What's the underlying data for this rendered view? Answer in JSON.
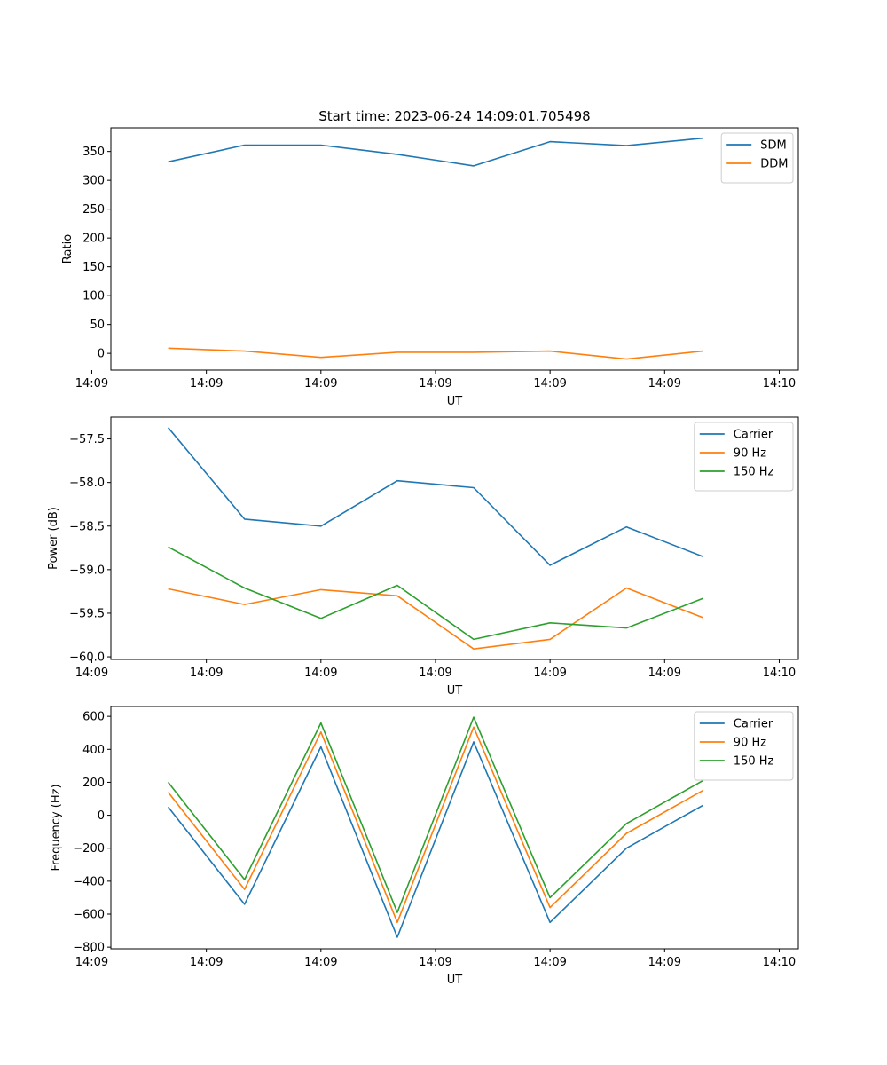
{
  "figure_title": "Start time: 2023-06-24 14:09:01.705498",
  "colors": {
    "blue": "#1f77b4",
    "orange": "#ff7f0e",
    "green": "#2ca02c"
  },
  "chart_data": [
    {
      "type": "line",
      "title": "Start time: 2023-06-24 14:09:01.705498",
      "xlabel": "UT",
      "ylabel": "Ratio",
      "x": [
        1,
        2,
        3,
        4,
        5,
        6,
        7,
        8
      ],
      "xlim": [
        0.25,
        9.25
      ],
      "x_ticks": [
        {
          "x": 0,
          "label": "14:09"
        },
        {
          "x": 1.5,
          "label": "14:09"
        },
        {
          "x": 3,
          "label": "14:09"
        },
        {
          "x": 4.5,
          "label": "14:09"
        },
        {
          "x": 6,
          "label": "14:09"
        },
        {
          "x": 7.5,
          "label": "14:09"
        },
        {
          "x": 9,
          "label": "14:10"
        }
      ],
      "ylim": [
        -29,
        391
      ],
      "y_ticks": [
        0,
        50,
        100,
        150,
        200,
        250,
        300,
        350
      ],
      "grid": false,
      "legend_position": "top-right",
      "series": [
        {
          "name": "SDM",
          "color": "#1f77b4",
          "values": [
            332,
            361,
            361,
            345,
            325,
            367,
            360,
            373
          ]
        },
        {
          "name": "DDM",
          "color": "#ff7f0e",
          "values": [
            9,
            4,
            -7,
            2,
            2,
            4,
            -10,
            4
          ]
        }
      ]
    },
    {
      "type": "line",
      "xlabel": "UT",
      "ylabel": "Power (dB)",
      "x": [
        1,
        2,
        3,
        4,
        5,
        6,
        7,
        8
      ],
      "xlim": [
        0.25,
        9.25
      ],
      "x_ticks": [
        {
          "x": 0,
          "label": "14:09"
        },
        {
          "x": 1.5,
          "label": "14:09"
        },
        {
          "x": 3,
          "label": "14:09"
        },
        {
          "x": 4.5,
          "label": "14:09"
        },
        {
          "x": 6,
          "label": "14:09"
        },
        {
          "x": 7.5,
          "label": "14:09"
        },
        {
          "x": 9,
          "label": "14:10"
        }
      ],
      "ylim": [
        -60.03,
        -57.25
      ],
      "y_ticks": [
        -60.0,
        -59.5,
        -59.0,
        -58.5,
        -58.0,
        -57.5
      ],
      "y_tick_labels": [
        "−60.0",
        "−59.5",
        "−59.0",
        "−58.5",
        "−58.0",
        "−57.5"
      ],
      "grid": false,
      "legend_position": "top-right",
      "series": [
        {
          "name": "Carrier",
          "color": "#1f77b4",
          "values": [
            -57.37,
            -58.42,
            -58.5,
            -57.98,
            -58.06,
            -58.95,
            -58.51,
            -58.85
          ]
        },
        {
          "name": "90 Hz",
          "color": "#ff7f0e",
          "values": [
            -59.22,
            -59.4,
            -59.23,
            -59.3,
            -59.91,
            -59.8,
            -59.21,
            -59.55
          ]
        },
        {
          "name": "150 Hz",
          "color": "#2ca02c",
          "values": [
            -58.74,
            -59.21,
            -59.56,
            -59.18,
            -59.8,
            -59.61,
            -59.67,
            -59.33
          ]
        }
      ]
    },
    {
      "type": "line",
      "xlabel": "UT",
      "ylabel": "Frequency (Hz)",
      "x": [
        1,
        2,
        3,
        4,
        5,
        6,
        7,
        8
      ],
      "xlim": [
        0.25,
        9.25
      ],
      "x_ticks": [
        {
          "x": 0,
          "label": "14:09"
        },
        {
          "x": 1.5,
          "label": "14:09"
        },
        {
          "x": 3,
          "label": "14:09"
        },
        {
          "x": 4.5,
          "label": "14:09"
        },
        {
          "x": 6,
          "label": "14:09"
        },
        {
          "x": 7.5,
          "label": "14:09"
        },
        {
          "x": 9,
          "label": "14:10"
        }
      ],
      "ylim": [
        -810,
        660
      ],
      "y_ticks": [
        -800,
        -600,
        -400,
        -200,
        0,
        200,
        400,
        600
      ],
      "y_tick_labels": [
        "−800",
        "−600",
        "−400",
        "−200",
        "0",
        "200",
        "400",
        "600"
      ],
      "grid": false,
      "legend_position": "top-right",
      "series": [
        {
          "name": "Carrier",
          "color": "#1f77b4",
          "values": [
            50,
            -540,
            415,
            -740,
            445,
            -650,
            -200,
            60
          ]
        },
        {
          "name": "90 Hz",
          "color": "#ff7f0e",
          "values": [
            140,
            -450,
            505,
            -650,
            535,
            -560,
            -110,
            150
          ]
        },
        {
          "name": "150 Hz",
          "color": "#2ca02c",
          "values": [
            200,
            -390,
            560,
            -590,
            595,
            -500,
            -50,
            210
          ]
        }
      ]
    }
  ]
}
